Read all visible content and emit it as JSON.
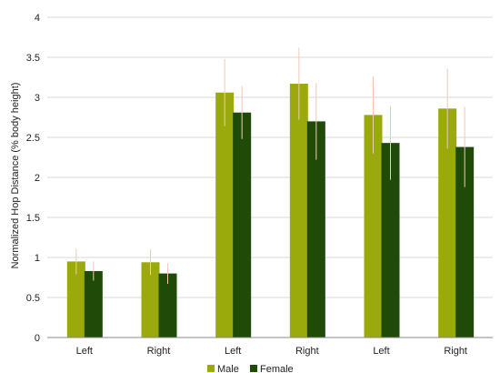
{
  "chart_data": {
    "type": "bar",
    "title": "",
    "xlabel": "",
    "ylabel": "Normalized Hop Distance (% body height)",
    "ylim": [
      0,
      4
    ],
    "yticks": [
      "0",
      "0.5",
      "1",
      "1.5",
      "2",
      "2.5",
      "3",
      "3.5",
      "4"
    ],
    "categories": [
      "Left",
      "Right",
      "Left",
      "Right",
      "Left",
      "Right"
    ],
    "grid": true,
    "legend_position": "bottom",
    "series": [
      {
        "name": "Male",
        "color": "#9aaa0c",
        "values": [
          0.95,
          0.94,
          3.06,
          3.17,
          2.78,
          2.86
        ],
        "error": [
          0.16,
          0.16,
          0.42,
          0.45,
          0.48,
          0.5
        ]
      },
      {
        "name": "Female",
        "color": "#1f4a08",
        "values": [
          0.83,
          0.8,
          2.81,
          2.7,
          2.43,
          2.38
        ],
        "error": [
          0.12,
          0.13,
          0.33,
          0.48,
          0.46,
          0.5
        ]
      }
    ],
    "error_bar_color": "#f3c9b4"
  }
}
